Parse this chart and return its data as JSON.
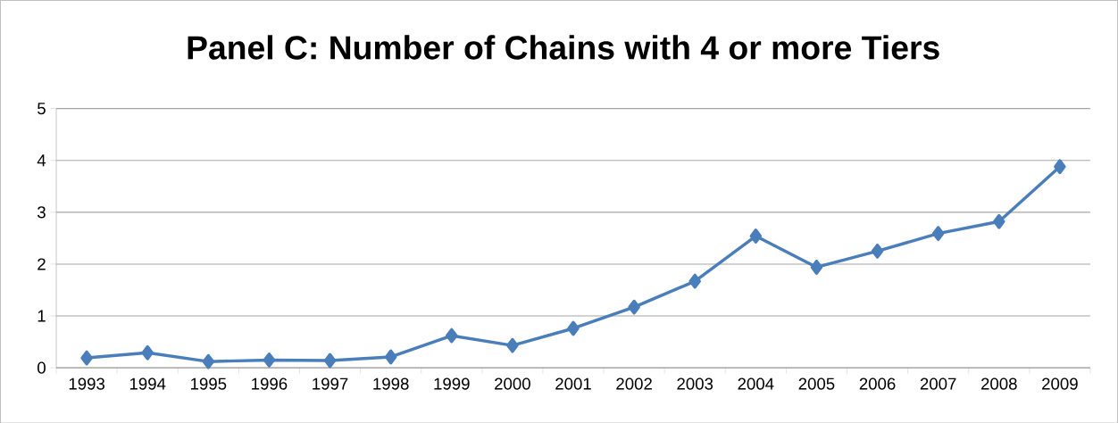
{
  "chart_data": {
    "type": "line",
    "title": "Panel C: Number of Chains with 4 or more Tiers",
    "categories": [
      "1993",
      "1994",
      "1995",
      "1996",
      "1997",
      "1998",
      "1999",
      "2000",
      "2001",
      "2002",
      "2003",
      "2004",
      "2005",
      "2006",
      "2007",
      "2008",
      "2009"
    ],
    "values": [
      0.19,
      0.29,
      0.12,
      0.15,
      0.14,
      0.21,
      0.62,
      0.43,
      0.76,
      1.17,
      1.67,
      2.54,
      1.94,
      2.25,
      2.59,
      2.82,
      3.88
    ],
    "color": "#4a7ebb",
    "marker": "diamond",
    "line_style": "solid",
    "ylim": [
      0,
      5
    ],
    "yticks": [
      0,
      1,
      2,
      3,
      4,
      5
    ],
    "grid": "y"
  }
}
